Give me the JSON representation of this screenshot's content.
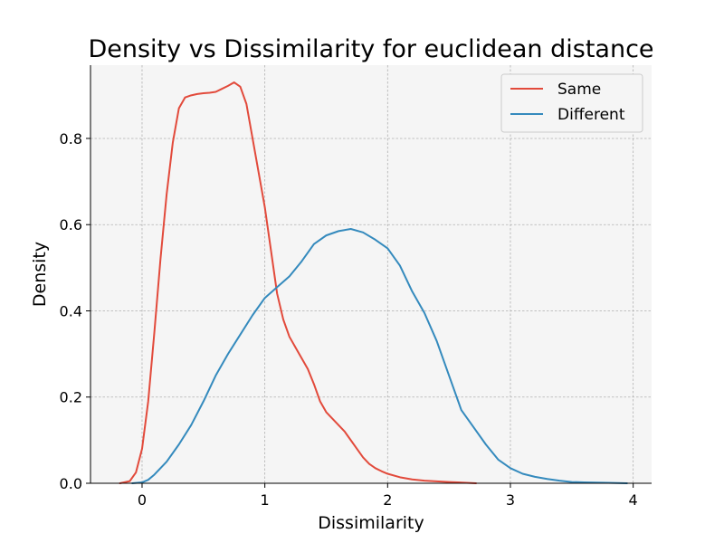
{
  "chart_data": {
    "type": "line",
    "title": "Density vs Dissimilarity for euclidean distance",
    "xlabel": "Dissimilarity",
    "ylabel": "Density",
    "xlim": [
      -0.42,
      4.15
    ],
    "ylim": [
      0,
      0.97
    ],
    "xticks": [
      0,
      1,
      2,
      3,
      4
    ],
    "xtick_labels": [
      "0",
      "1",
      "2",
      "3",
      "4"
    ],
    "yticks": [
      0.0,
      0.2,
      0.4,
      0.6,
      0.8
    ],
    "ytick_labels": [
      "0.0",
      "0.2",
      "0.4",
      "0.6",
      "0.8"
    ],
    "grid": true,
    "legend_position": "top-right",
    "background": "#f5f5f5",
    "series": [
      {
        "name": "Same",
        "color": "#e24a3b",
        "x": [
          -0.18,
          -0.1,
          -0.05,
          0.0,
          0.05,
          0.1,
          0.15,
          0.2,
          0.25,
          0.3,
          0.35,
          0.4,
          0.45,
          0.5,
          0.55,
          0.6,
          0.65,
          0.7,
          0.75,
          0.8,
          0.85,
          0.9,
          0.95,
          1.0,
          1.05,
          1.1,
          1.15,
          1.2,
          1.25,
          1.3,
          1.35,
          1.4,
          1.45,
          1.5,
          1.55,
          1.6,
          1.65,
          1.7,
          1.75,
          1.8,
          1.85,
          1.9,
          1.95,
          2.0,
          2.1,
          2.2,
          2.3,
          2.5,
          2.72
        ],
        "values": [
          0.0,
          0.005,
          0.025,
          0.08,
          0.19,
          0.35,
          0.52,
          0.67,
          0.79,
          0.87,
          0.895,
          0.9,
          0.903,
          0.905,
          0.906,
          0.908,
          0.915,
          0.922,
          0.93,
          0.92,
          0.88,
          0.8,
          0.72,
          0.64,
          0.54,
          0.44,
          0.38,
          0.34,
          0.315,
          0.29,
          0.265,
          0.23,
          0.19,
          0.165,
          0.15,
          0.135,
          0.12,
          0.1,
          0.08,
          0.06,
          0.045,
          0.035,
          0.028,
          0.022,
          0.014,
          0.009,
          0.006,
          0.003,
          0.0
        ]
      },
      {
        "name": "Different",
        "color": "#348abd",
        "x": [
          -0.08,
          0.0,
          0.05,
          0.1,
          0.2,
          0.3,
          0.4,
          0.5,
          0.6,
          0.7,
          0.8,
          0.9,
          1.0,
          1.1,
          1.2,
          1.3,
          1.4,
          1.5,
          1.6,
          1.7,
          1.8,
          1.9,
          2.0,
          2.1,
          2.2,
          2.3,
          2.4,
          2.5,
          2.6,
          2.7,
          2.8,
          2.9,
          3.0,
          3.1,
          3.2,
          3.3,
          3.4,
          3.5,
          3.6,
          3.8,
          3.95
        ],
        "values": [
          0.0,
          0.002,
          0.008,
          0.02,
          0.05,
          0.09,
          0.135,
          0.19,
          0.25,
          0.3,
          0.345,
          0.39,
          0.43,
          0.455,
          0.48,
          0.515,
          0.555,
          0.575,
          0.585,
          0.59,
          0.582,
          0.565,
          0.545,
          0.505,
          0.445,
          0.395,
          0.33,
          0.25,
          0.17,
          0.13,
          0.09,
          0.055,
          0.035,
          0.022,
          0.015,
          0.01,
          0.006,
          0.003,
          0.002,
          0.001,
          0.0
        ]
      }
    ]
  }
}
